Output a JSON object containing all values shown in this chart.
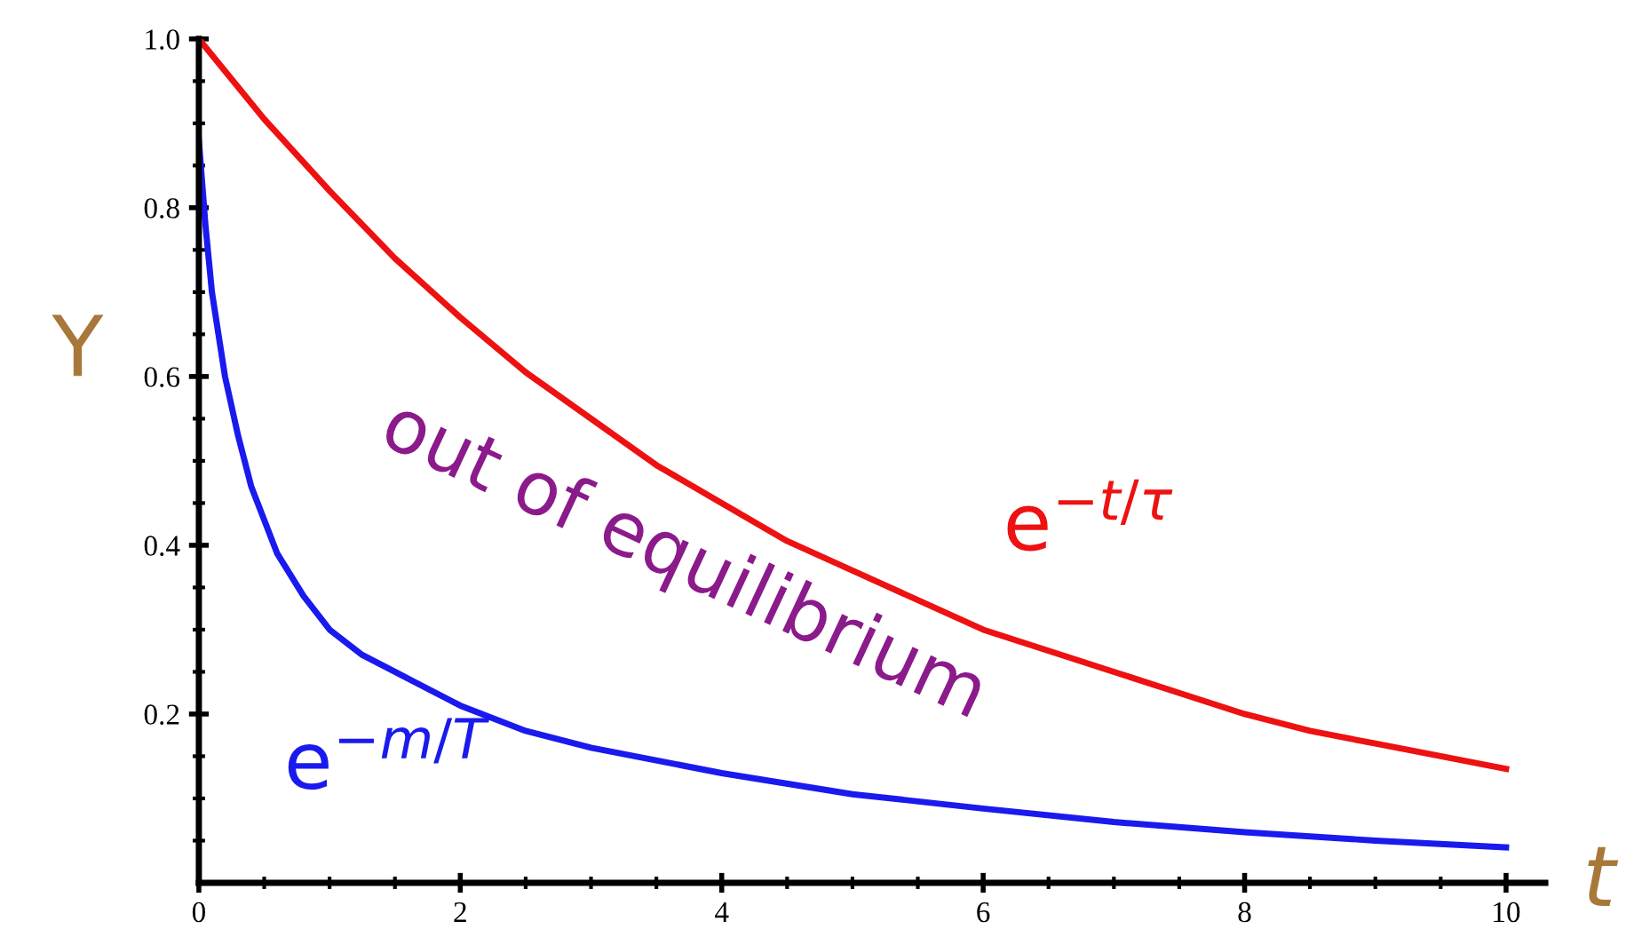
{
  "chart_data": {
    "type": "line",
    "xlabel": "t",
    "ylabel": "Y",
    "series": [
      {
        "color": "#ee1111",
        "x": [
          0,
          0.5,
          1,
          1.5,
          2,
          2.5,
          3,
          3.5,
          4,
          4.5,
          5,
          5.5,
          6,
          6.5,
          7,
          7.5,
          8,
          8.5,
          9,
          9.5,
          10
        ],
        "values": [
          1.0,
          0.905,
          0.82,
          0.74,
          0.67,
          0.605,
          0.55,
          0.495,
          0.45,
          0.405,
          0.37,
          0.335,
          0.3,
          0.275,
          0.25,
          0.225,
          0.2,
          0.18,
          0.165,
          0.15,
          0.135
        ]
      },
      {
        "color": "#1a1aee",
        "x": [
          0,
          0.05,
          0.1,
          0.2,
          0.3,
          0.4,
          0.6,
          0.8,
          1,
          1.25,
          1.5,
          2,
          2.5,
          3,
          4,
          5,
          6,
          7,
          8,
          9,
          10
        ],
        "values": [
          0.88,
          0.78,
          0.7,
          0.6,
          0.53,
          0.47,
          0.39,
          0.34,
          0.3,
          0.27,
          0.25,
          0.21,
          0.18,
          0.16,
          0.13,
          0.105,
          0.088,
          0.072,
          0.06,
          0.05,
          0.042
        ]
      }
    ],
    "annotations": [
      {
        "text": "e$^{−t/τ}$",
        "x": 7,
        "y": 0.25
      },
      {
        "text": "e$^{−m/T}$",
        "x": 2,
        "y": 0.21
      },
      "out of equilibrium"
    ],
    "xlim": [
      0,
      10.3
    ],
    "ylim": [
      0,
      1.0
    ],
    "xticks": [
      0,
      2,
      4,
      6,
      8,
      10
    ],
    "yticks": [
      0.2,
      0.4,
      0.6,
      0.8,
      {
        "value": 1.0,
        "label": "1.0"
      }
    ],
    "grid": false,
    "legend": false,
    "marker": "none",
    "line_style": "solid"
  }
}
